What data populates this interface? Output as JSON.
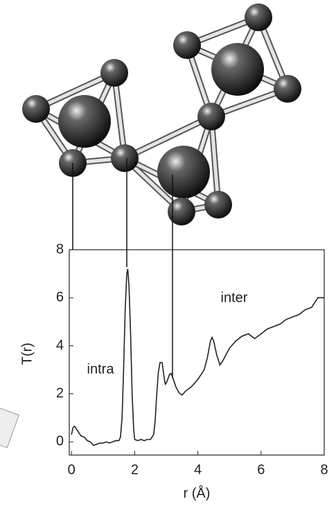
{
  "chart_data": {
    "type": "line",
    "xlabel": "r (Å)",
    "ylabel": "T(r)",
    "annotations": [
      "intra",
      "inter"
    ],
    "xlim": [
      -0.07,
      8
    ],
    "ylim": [
      -0.55,
      8
    ],
    "xticks": [
      0,
      2,
      4,
      6,
      8
    ],
    "yticks": [
      0,
      2,
      4,
      6,
      8
    ],
    "x": [
      0.0,
      0.05,
      0.1,
      0.2,
      0.3,
      0.4,
      0.5,
      0.6,
      0.7,
      0.8,
      0.9,
      1.0,
      1.1,
      1.2,
      1.3,
      1.4,
      1.5,
      1.55,
      1.6,
      1.65,
      1.7,
      1.75,
      1.78,
      1.82,
      1.87,
      1.92,
      1.97,
      2.0,
      2.1,
      2.2,
      2.3,
      2.4,
      2.5,
      2.6,
      2.65,
      2.7,
      2.75,
      2.8,
      2.87,
      2.92,
      2.97,
      3.02,
      3.1,
      3.15,
      3.2,
      3.3,
      3.4,
      3.5,
      3.6,
      3.8,
      4.0,
      4.2,
      4.3,
      4.4,
      4.45,
      4.5,
      4.6,
      4.7,
      4.8,
      5.0,
      5.2,
      5.4,
      5.6,
      5.8,
      6.0,
      6.2,
      6.4,
      6.6,
      6.8,
      7.0,
      7.2,
      7.4,
      7.6,
      7.7,
      7.8,
      8.0
    ],
    "series": [
      {
        "color": "#222222",
        "values": [
          0.3,
          0.6,
          0.65,
          0.45,
          0.25,
          0.2,
          0.05,
          0.0,
          -0.15,
          -0.1,
          -0.05,
          -0.05,
          0.0,
          -0.05,
          0.0,
          0.05,
          0.05,
          0.2,
          1.0,
          3.0,
          5.5,
          7.0,
          7.2,
          6.5,
          4.5,
          2.0,
          0.5,
          0.1,
          0.05,
          0.1,
          0.05,
          0.1,
          0.1,
          0.3,
          0.9,
          2.0,
          2.9,
          3.3,
          3.3,
          2.8,
          2.4,
          2.5,
          2.8,
          2.85,
          2.7,
          2.3,
          2.05,
          1.95,
          2.1,
          2.3,
          2.6,
          3.0,
          3.5,
          4.2,
          4.35,
          4.2,
          3.6,
          3.2,
          3.4,
          3.9,
          4.2,
          4.4,
          4.5,
          4.3,
          4.5,
          4.7,
          4.8,
          4.9,
          5.1,
          5.2,
          5.3,
          5.5,
          5.6,
          5.8,
          6.0,
          6.0
        ]
      }
    ]
  }
}
